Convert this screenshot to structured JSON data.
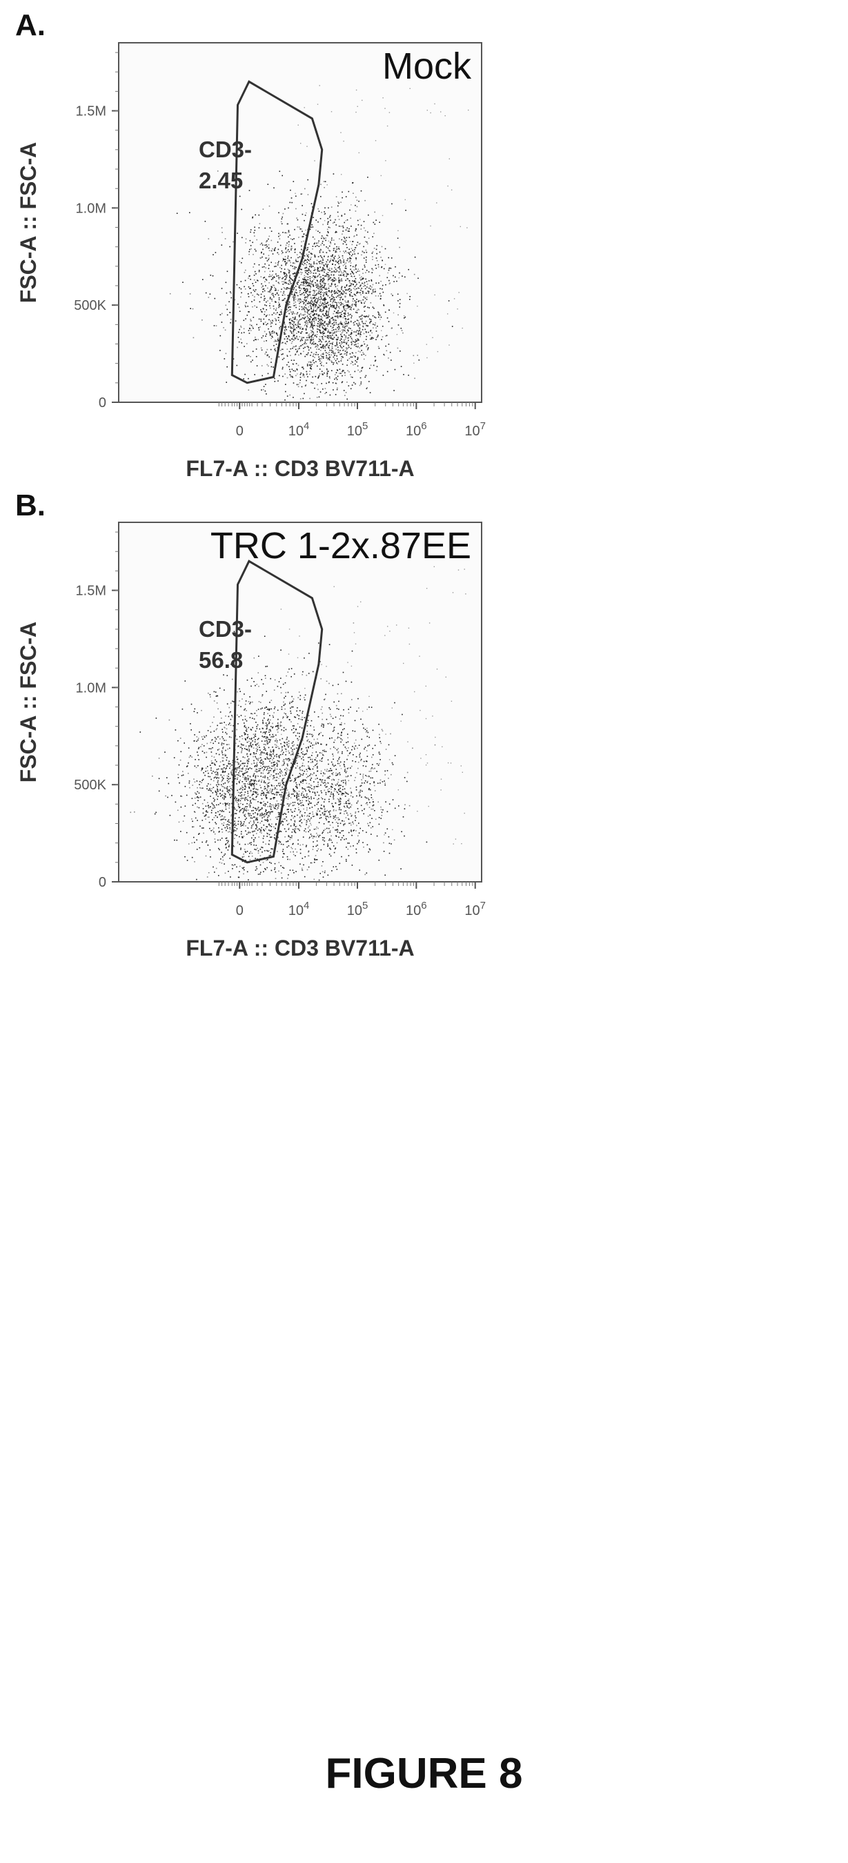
{
  "figure_caption": "FIGURE 8",
  "chart_data": [
    {
      "type": "scatter",
      "panel_letter": "A.",
      "sample_label": "Mock",
      "xlabel": "FL7-A :: CD3 BV711-A",
      "ylabel": "FSC-A :: FSC-A",
      "x_scale": "biexponential",
      "x_tick_labels": [
        "0",
        "10^4",
        "10^5",
        "10^6",
        "10^7"
      ],
      "y_tick_labels": [
        "0",
        "500K",
        "1.0M",
        "1.5M"
      ],
      "y_ticks": [
        0,
        500000,
        1000000,
        1500000
      ],
      "gate": {
        "name": "CD3-",
        "percent": "2.45",
        "vertices": [
          [
            -600,
            140000
          ],
          [
            -150,
            1530000
          ],
          [
            750,
            1650000
          ],
          [
            17000,
            1460000
          ],
          [
            25000,
            1300000
          ],
          [
            22000,
            1120000
          ],
          [
            11500,
            740000
          ],
          [
            6000,
            500000
          ],
          [
            3500,
            130000
          ],
          [
            600,
            100000
          ]
        ]
      },
      "clusters": [
        {
          "x": 25000,
          "y": 500000,
          "weight": 0.85
        },
        {
          "x": 9000,
          "y": 650000,
          "weight": 0.1
        },
        {
          "x": 2500,
          "y": 380000,
          "weight": 0.05
        }
      ]
    },
    {
      "type": "scatter",
      "panel_letter": "B.",
      "sample_label": "TRC 1-2x.87EE",
      "xlabel": "FL7-A :: CD3 BV711-A",
      "ylabel": "FSC-A :: FSC-A",
      "x_scale": "biexponential",
      "x_tick_labels": [
        "0",
        "10^4",
        "10^5",
        "10^6",
        "10^7"
      ],
      "y_tick_labels": [
        "0",
        "500K",
        "1.0M",
        "1.5M"
      ],
      "y_ticks": [
        0,
        500000,
        1000000,
        1500000
      ],
      "gate": {
        "name": "CD3-",
        "percent": "56.8",
        "vertices": [
          [
            -600,
            140000
          ],
          [
            -150,
            1530000
          ],
          [
            750,
            1650000
          ],
          [
            17000,
            1460000
          ],
          [
            25000,
            1300000
          ],
          [
            22000,
            1120000
          ],
          [
            11500,
            740000
          ],
          [
            6000,
            500000
          ],
          [
            3500,
            130000
          ],
          [
            600,
            100000
          ]
        ]
      },
      "clusters": [
        {
          "x": 600,
          "y": 480000,
          "weight": 0.5
        },
        {
          "x": 30000,
          "y": 470000,
          "weight": 0.35
        },
        {
          "x": 2500,
          "y": 700000,
          "weight": 0.15
        }
      ]
    }
  ]
}
